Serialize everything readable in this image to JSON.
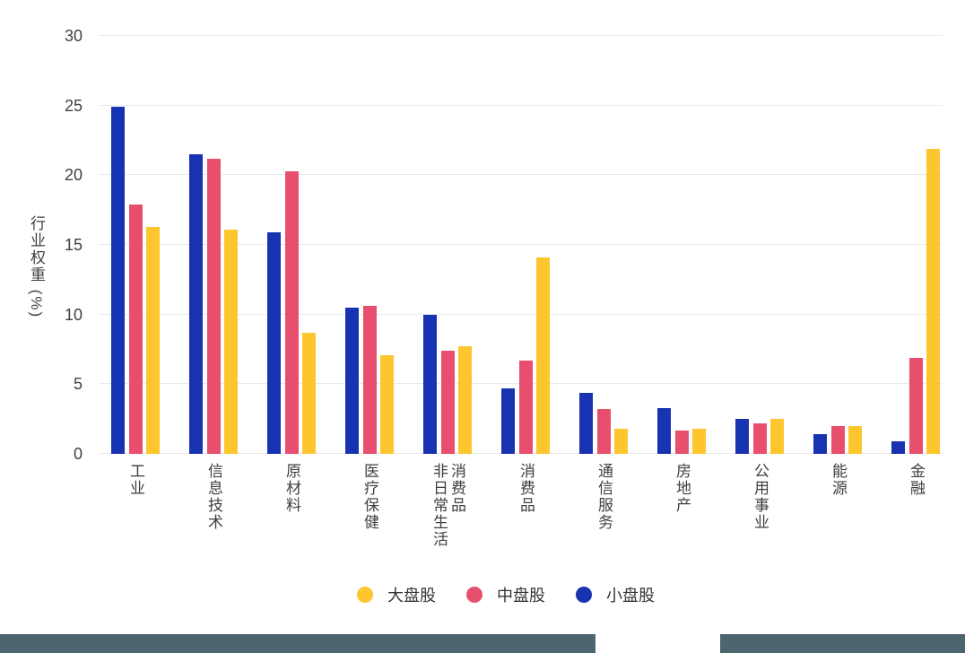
{
  "chart_data": {
    "type": "bar",
    "title": "",
    "ylabel": "行业权重 (%)",
    "xlabel": "",
    "ylim": [
      0,
      30
    ],
    "yticks": [
      0,
      5,
      10,
      15,
      20,
      25,
      30
    ],
    "grid": true,
    "legend_position": "bottom",
    "categories": [
      "工业",
      "信息技术",
      "原材料",
      "医疗保健",
      "非日常生活消费品",
      "消费品",
      "通信服务",
      "房地产",
      "公用事业",
      "能源",
      "金融"
    ],
    "series": [
      {
        "name": "小盘股",
        "color": "#1733b2",
        "values": [
          24.9,
          21.5,
          15.9,
          10.5,
          10.0,
          4.7,
          4.4,
          3.3,
          2.5,
          1.4,
          0.9
        ]
      },
      {
        "name": "中盘股",
        "color": "#e84f6e",
        "values": [
          17.9,
          21.2,
          20.3,
          10.6,
          7.4,
          6.7,
          3.2,
          1.7,
          2.2,
          2.0,
          6.9
        ]
      },
      {
        "name": "大盘股",
        "color": "#fdc62f",
        "values": [
          16.3,
          16.1,
          8.7,
          7.1,
          7.7,
          14.1,
          1.8,
          1.8,
          2.5,
          2.0,
          21.9
        ]
      }
    ],
    "legend": [
      {
        "label": "大盘股",
        "color": "#fdc62f"
      },
      {
        "label": "中盘股",
        "color": "#e84f6e"
      },
      {
        "label": "小盘股",
        "color": "#1733b2"
      }
    ]
  },
  "colors": {
    "gridline": "#e9e9e9",
    "axis_text": "#3f3f3f",
    "bottom_bar": "#4d656e"
  }
}
